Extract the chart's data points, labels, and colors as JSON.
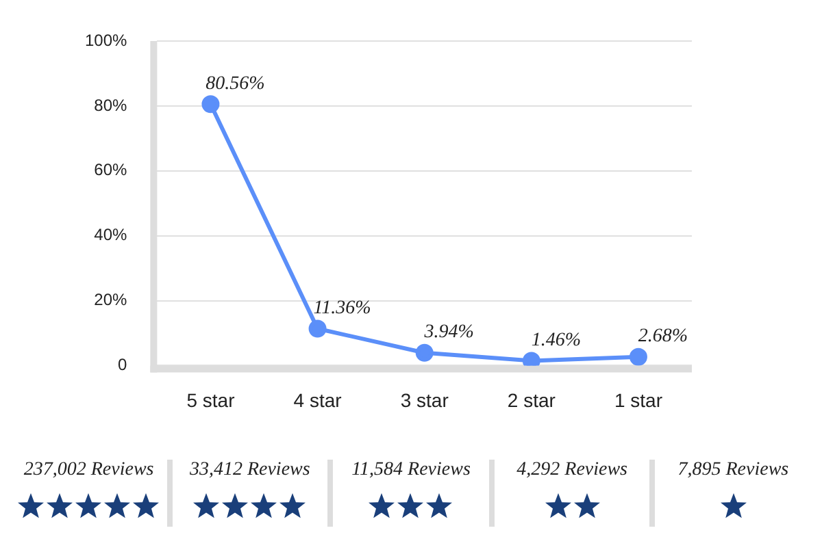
{
  "chart_data": {
    "type": "line",
    "categories": [
      "5 star",
      "4 star",
      "3 star",
      "2 star",
      "1 star"
    ],
    "series": [
      {
        "color": "#5b8ff9",
        "values": [
          80.56,
          11.36,
          3.94,
          1.46,
          2.68
        ]
      }
    ],
    "value_labels": [
      "80.56%",
      "11.36%",
      "3.94%",
      "1.46%",
      "2.68%"
    ],
    "ylim": [
      0,
      100
    ],
    "yticks": [
      {
        "value": 0,
        "label": "0"
      },
      {
        "value": 20,
        "label": "20%"
      },
      {
        "value": 40,
        "label": "40%"
      },
      {
        "value": 60,
        "label": "60%"
      },
      {
        "value": 80,
        "label": "80%"
      },
      {
        "value": 100,
        "label": "100%"
      }
    ],
    "grid": "y",
    "legend": false,
    "marker": "circle",
    "line_style": "solid",
    "annotations": [
      "237,002 Reviews",
      "33,412 Reviews",
      "11,584 Reviews",
      "4,292 Reviews",
      "7,895 Reviews"
    ]
  }
}
